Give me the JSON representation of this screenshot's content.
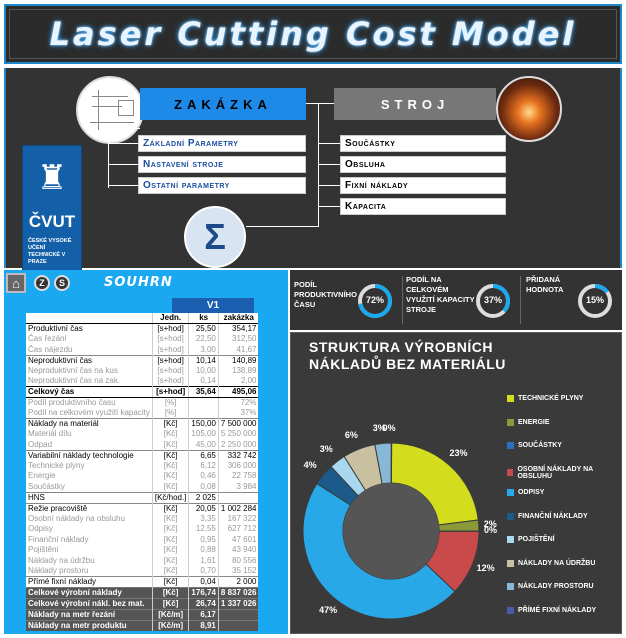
{
  "title": "Laser Cutting Cost Model",
  "top": {
    "zakazka_label": "ZAKÁZKA",
    "stroj_label": "STROJ",
    "left_menu": [
      "Základní Parametry",
      "Nastavení stroje",
      "Ostatní parametry"
    ],
    "right_menu": [
      "Součástky",
      "Obsluha",
      "Fixní náklady",
      "Kapacita"
    ],
    "sigma": "Σ",
    "logo_name": "ČVUT",
    "logo_sub": "ČESKÉ VYSOKÉ UČENÍ TECHNICKÉ V PRAZE"
  },
  "nav": {
    "home_icon": "home-icon",
    "btn1": "Z",
    "btn2": "S",
    "title": "SOUHRN"
  },
  "table": {
    "variant": "V1",
    "headers": [
      "",
      "Jedn.",
      "ks",
      "zakázka"
    ],
    "rows": [
      {
        "name": "Produktivní čas",
        "unit": "[s+hod]",
        "ks": "25,50",
        "zak": "354,17",
        "style": "main"
      },
      {
        "name": "Čas řezání",
        "unit": "[s+hod]",
        "ks": "22,50",
        "zak": "312,50",
        "style": "sub"
      },
      {
        "name": "Čas nájezdu",
        "unit": "[s+hod]",
        "ks": "3,00",
        "zak": "41,67",
        "style": "sub"
      },
      {
        "name": "Neproduktivní čas",
        "unit": "[s+hod]",
        "ks": "10,14",
        "zak": "140,89",
        "style": "main sep"
      },
      {
        "name": "Neproduktivní čas na kus",
        "unit": "[s+hod]",
        "ks": "10,00",
        "zak": "138,89",
        "style": "sub"
      },
      {
        "name": "Neproduktivní čas na zak.",
        "unit": "[s+hod]",
        "ks": "0,14",
        "zak": "2,00",
        "style": "sub"
      },
      {
        "name": "Celkový čas",
        "unit": "[s+hod]",
        "ks": "35,64",
        "zak": "495,06",
        "style": "bold"
      },
      {
        "name": "Podíl produktivního času",
        "unit": "[%]",
        "ks": "",
        "zak": "72%",
        "style": "sub"
      },
      {
        "name": "Podíl na celkovém využití kapacity",
        "unit": "[%]",
        "ks": "",
        "zak": "37%",
        "style": "sub"
      },
      {
        "name": "Náklady na materiál",
        "unit": "[Kč]",
        "ks": "150,00",
        "zak": "7 500 000",
        "style": "main sep"
      },
      {
        "name": "Materiál dílu",
        "unit": "[Kč]",
        "ks": "105,00",
        "zak": "5 250 000",
        "style": "sub"
      },
      {
        "name": "Odpad",
        "unit": "[Kč]",
        "ks": "45,00",
        "zak": "2 250 000",
        "style": "sub"
      },
      {
        "name": "Variabilní náklady technologie",
        "unit": "[Kč]",
        "ks": "6,65",
        "zak": "332 742",
        "style": "main sep"
      },
      {
        "name": "Technické plyny",
        "unit": "[Kč]",
        "ks": "6,12",
        "zak": "306 000",
        "style": "sub"
      },
      {
        "name": "Energie",
        "unit": "[Kč]",
        "ks": "0,46",
        "zak": "22 758",
        "style": "sub"
      },
      {
        "name": "Součástky",
        "unit": "[Kč]",
        "ks": "0,08",
        "zak": "3 984",
        "style": "sub"
      },
      {
        "name": "HNS",
        "unit": "[Kč/hod.]",
        "ks": "2 025",
        "zak": "",
        "style": "main sep"
      },
      {
        "name": "Režie pracoviště",
        "unit": "[Kč]",
        "ks": "20,05",
        "zak": "1 002 284",
        "style": "main sep"
      },
      {
        "name": "Osobní náklady na obsluhu",
        "unit": "[Kč]",
        "ks": "3,35",
        "zak": "167 322",
        "style": "sub"
      },
      {
        "name": "Odpisy",
        "unit": "[Kč]",
        "ks": "12,55",
        "zak": "627 712",
        "style": "sub"
      },
      {
        "name": "Finanční náklady",
        "unit": "[Kč]",
        "ks": "0,95",
        "zak": "47 601",
        "style": "sub"
      },
      {
        "name": "Pojištění",
        "unit": "[Kč]",
        "ks": "0,88",
        "zak": "43 940",
        "style": "sub"
      },
      {
        "name": "Náklady na údržbu",
        "unit": "[Kč]",
        "ks": "1,61",
        "zak": "80 556",
        "style": "sub"
      },
      {
        "name": "Náklady prostoru",
        "unit": "[Kč]",
        "ks": "0,70",
        "zak": "35 152",
        "style": "sub"
      },
      {
        "name": "Přímé fixní náklady",
        "unit": "[Kč]",
        "ks": "0,04",
        "zak": "2 000",
        "style": "main sep"
      },
      {
        "name": "Celkové výrobní náklady",
        "unit": "[Kč]",
        "ks": "176,74",
        "zak": "8 837 026",
        "style": "dark"
      },
      {
        "name": "Celkové výrobní nákl. bez mat.",
        "unit": "[Kč]",
        "ks": "26,74",
        "zak": "1 337 026",
        "style": "dark"
      },
      {
        "name": "Náklady na metr řezání",
        "unit": "[Kč/m]",
        "ks": "6,17",
        "zak": "",
        "style": "dark"
      },
      {
        "name": "Náklady na metr produktu",
        "unit": "[Kč/m]",
        "ks": "8,91",
        "zak": "",
        "style": "dark"
      }
    ]
  },
  "kpis": [
    {
      "label": "Podíl produktivního času",
      "value": "72%",
      "fraction": 0.72
    },
    {
      "label": "Podíl na celkovém využití kapacity stroje",
      "value": "37%",
      "fraction": 0.37
    },
    {
      "label": "Přidaná hodnota",
      "value": "15%",
      "fraction": 0.15
    }
  ],
  "chart_data": {
    "type": "pie",
    "title": "Struktura výrobních nákladů bez materiálu",
    "categories": [
      "Technické plyny",
      "Energie",
      "Součástky",
      "Osobní náklady na obsluhu",
      "Odpisy",
      "Finanční náklady",
      "Pojištění",
      "Náklady na údržbu",
      "Náklady prostoru",
      "Přímé fixní náklady"
    ],
    "values": [
      23,
      2,
      0,
      12,
      47,
      4,
      3,
      6,
      3,
      0
    ],
    "labels": [
      "23%",
      "2%",
      "0%",
      "12%",
      "47%",
      "4%",
      "3%",
      "6%",
      "3%",
      "0%"
    ],
    "colors": [
      "#d4dc1e",
      "#8a9a3a",
      "#2a6fc0",
      "#c94a4a",
      "#29a8e8",
      "#1c5a8a",
      "#a8d8f0",
      "#c8c0a0",
      "#88b8d8",
      "#4a5aa8"
    ],
    "legend_position": "right"
  }
}
